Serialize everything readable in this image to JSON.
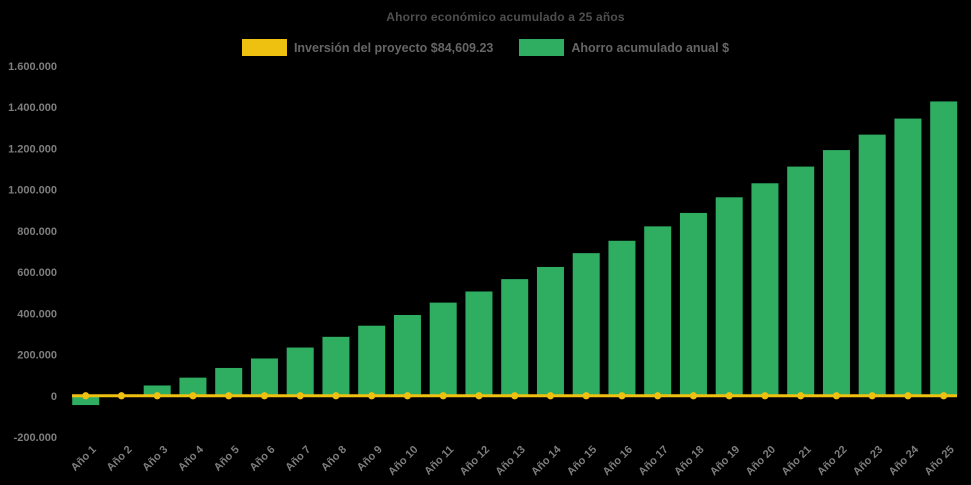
{
  "title": "Ahorro económico acumulado a 25 años",
  "colors": {
    "background": "#000000",
    "bar_green": "#2fae62",
    "line_yellow": "#eec111",
    "title_text": "#4f4f4f",
    "legend_text": "#666666",
    "axis_text": "#7e7e7e"
  },
  "legend": [
    {
      "label": "Inversión del proyecto $84,609.23",
      "color": "#eec111"
    },
    {
      "label": "Ahorro acumulado anual $",
      "color": "#2fae62"
    }
  ],
  "chart_data": {
    "type": "bar",
    "title": "Ahorro económico acumulado a 25 años",
    "xlabel": "",
    "ylabel": "",
    "ylim": [
      -200000,
      1600000
    ],
    "grid": false,
    "legend_position": "top",
    "categories": [
      "Año 1",
      "Año 2",
      "Año 3",
      "Año 4",
      "Año 5",
      "Año 6",
      "Año 7",
      "Año 8",
      "Año 9",
      "Año 10",
      "Año 11",
      "Año 12",
      "Año 13",
      "Año 14",
      "Año 15",
      "Año 16",
      "Año 17",
      "Año 18",
      "Año 19",
      "Año 20",
      "Año 21",
      "Año 22",
      "Año 23",
      "Año 24",
      "Año 25"
    ],
    "series": [
      {
        "name": "Ahorro acumulado anual $",
        "type": "bar",
        "color": "#2fae62",
        "values": [
          -45000,
          0,
          50000,
          88000,
          135000,
          181000,
          234000,
          286000,
          340000,
          392000,
          452000,
          506000,
          566000,
          625000,
          692000,
          752000,
          822000,
          887000,
          963000,
          1031000,
          1112000,
          1192000,
          1267000,
          1345000,
          1428000
        ]
      },
      {
        "name": "Inversión del proyecto $84,609.23",
        "type": "line",
        "color": "#eec111",
        "marker": "circle",
        "values": [
          0,
          0,
          0,
          0,
          0,
          0,
          0,
          0,
          0,
          0,
          0,
          0,
          0,
          0,
          0,
          0,
          0,
          0,
          0,
          0,
          0,
          0,
          0,
          0,
          0
        ]
      }
    ],
    "y_ticks": {
      "values": [
        1600000,
        1400000,
        1200000,
        1000000,
        800000,
        600000,
        400000,
        200000,
        0,
        -200000
      ],
      "labels": [
        "1.600.000",
        "1.400.000",
        "1.200.000",
        "1.000.000",
        "800.000",
        "600.000",
        "400.000",
        "200.000",
        "0",
        "-200.000"
      ]
    }
  }
}
